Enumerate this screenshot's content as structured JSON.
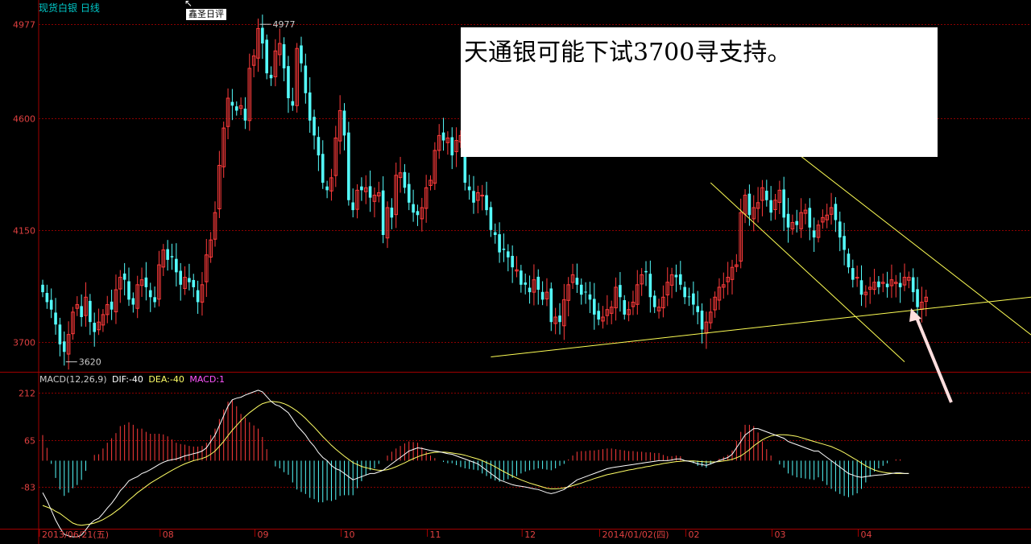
{
  "header": {
    "title": "现货白银  日线"
  },
  "annotation": {
    "text": "天通银可能下试3700寻支持。",
    "marker_label": "鑫圣日评",
    "marker_icon": "cursor-icon"
  },
  "colors": {
    "up": "#ff3b3b",
    "down": "#54fcfc",
    "grid": "#8c0000",
    "axis": "#a00000",
    "dif": "#ffffff",
    "dea": "#ffff66",
    "macd": "#ff55ff",
    "trend": "#ffff55",
    "arrow": "#ffdede"
  },
  "macd_legend": {
    "name": "MACD(12,26,9)",
    "dif": "DIF:-40",
    "dea": "DEA:-40",
    "macd": "MACD:1"
  },
  "chart_data": [
    {
      "type": "candlestick",
      "title": "现货白银 日线",
      "y_ticks": [
        3700,
        4150,
        4600,
        4977
      ],
      "ylim": [
        3580,
        5010
      ],
      "x_ticks": [
        "2013/06/21(五)",
        "08",
        "09",
        "10",
        "11",
        "12",
        "2014/01/02(四)",
        "02",
        "03",
        "04"
      ],
      "annotations": [
        {
          "label": "4977",
          "kind": "high"
        },
        {
          "label": "3620",
          "kind": "low"
        }
      ],
      "trendlines": [
        {
          "name": "support",
          "from": [
            "2013/12/06",
            3640
          ],
          "to": [
            "2014/04/30",
            3880
          ]
        },
        {
          "name": "channel-upper",
          "from": [
            "2014/01/30",
            4930
          ],
          "to": [
            "2014/04/30",
            3720
          ]
        },
        {
          "name": "channel-lower",
          "from": [
            "2014/01/27",
            4340
          ],
          "to": [
            "2014/04/25",
            3620
          ]
        }
      ],
      "close": [
        3900,
        3860,
        3830,
        3770,
        3690,
        3660,
        3730,
        3820,
        3850,
        3800,
        3880,
        3780,
        3740,
        3780,
        3810,
        3850,
        3830,
        3910,
        3960,
        3950,
        3870,
        3850,
        3930,
        3950,
        3920,
        3880,
        3860,
        4010,
        4070,
        4030,
        4040,
        3980,
        3930,
        3960,
        3940,
        3920,
        3860,
        3930,
        4050,
        4110,
        4220,
        4410,
        4560,
        4680,
        4650,
        4630,
        4650,
        4590,
        4800,
        4850,
        4960,
        4900,
        4780,
        4760,
        4870,
        4900,
        4800,
        4680,
        4650,
        4880,
        4820,
        4700,
        4590,
        4530,
        4450,
        4340,
        4310,
        4360,
        4520,
        4630,
        4530,
        4270,
        4230,
        4310,
        4310,
        4320,
        4280,
        4290,
        4300,
        4130,
        4240,
        4200,
        4370,
        4380,
        4320,
        4260,
        4220,
        4210,
        4240,
        4320,
        4350,
        4470,
        4530,
        4510,
        4520,
        4450,
        4510,
        4530,
        4340,
        4310,
        4260,
        4300,
        4290,
        4230,
        4150,
        4130,
        4060,
        4070,
        4040,
        4000,
        3990,
        3930,
        3930,
        3900,
        3950,
        3910,
        3870,
        3900,
        3780,
        3800,
        3780,
        3870,
        3930,
        3970,
        3930,
        3890,
        3900,
        3870,
        3810,
        3790,
        3800,
        3830,
        3840,
        3920,
        3880,
        3810,
        3830,
        3860,
        3930,
        3970,
        3980,
        3880,
        3840,
        3840,
        3880,
        3940,
        3970,
        3960,
        3930,
        3880,
        3880,
        3850,
        3820,
        3750,
        3780,
        3820,
        3880,
        3920,
        3930,
        3960,
        4000,
        4010,
        4220,
        4290,
        4210,
        4240,
        4260,
        4320,
        4270,
        4220,
        4270,
        4310,
        4200,
        4160,
        4180,
        4170,
        4220,
        4230,
        4160,
        4120,
        4170,
        4200,
        4210,
        4240,
        4190,
        4120,
        4070,
        4000,
        3950,
        3960,
        3890,
        3900,
        3920,
        3940,
        3920,
        3940,
        3920,
        3950,
        3940,
        3920,
        3960,
        3960,
        3900,
        3840,
        3860,
        3880
      ],
      "series": [
        {
          "name": "MA",
          "values": []
        }
      ]
    },
    {
      "type": "macd",
      "title": "MACD(12,26,9)",
      "y_ticks": [
        212,
        65,
        -83
      ],
      "ylim": [
        -210,
        270
      ],
      "series": [
        {
          "name": "DIF",
          "values": [
            -100,
            -125,
            -155,
            -185,
            -210,
            -230,
            -235,
            -238,
            -238,
            -232,
            -216,
            -198,
            -186,
            -180,
            -165,
            -148,
            -133,
            -115,
            -94,
            -80,
            -63,
            -56,
            -50,
            -40,
            -35,
            -28,
            -20,
            -12,
            -5,
            0,
            3,
            5,
            10,
            15,
            18,
            22,
            25,
            30,
            40,
            60,
            80,
            110,
            140,
            170,
            190,
            195,
            198,
            205,
            210,
            215,
            220,
            215,
            200,
            185,
            175,
            170,
            160,
            150,
            130,
            110,
            95,
            80,
            60,
            45,
            25,
            10,
            0,
            -15,
            -25,
            -30,
            -40,
            -50,
            -60,
            -55,
            -50,
            -45,
            -40,
            -40,
            -35,
            -30,
            -20,
            -10,
            0,
            10,
            20,
            30,
            35,
            40,
            38,
            35,
            32,
            30,
            28,
            25,
            22,
            20,
            15,
            10,
            5,
            0,
            -5,
            -10,
            -20,
            -30,
            -40,
            -50,
            -60,
            -65,
            -70,
            -75,
            -78,
            -80,
            -82,
            -85,
            -88,
            -90,
            -95,
            -100,
            -103,
            -100,
            -95,
            -90,
            -80,
            -70,
            -60,
            -55,
            -50,
            -45,
            -40,
            -35,
            -30,
            -25,
            -22,
            -20,
            -18,
            -16,
            -14,
            -12,
            -10,
            -8,
            -6,
            -4,
            -2,
            0,
            0,
            0,
            2,
            5,
            5,
            0,
            -2,
            -5,
            -10,
            -12,
            -15,
            -10,
            -5,
            0,
            5,
            10,
            20,
            40,
            60,
            80,
            90,
            100,
            100,
            95,
            90,
            85,
            80,
            75,
            70,
            60,
            55,
            50,
            45,
            40,
            35,
            30,
            30,
            20,
            10,
            0,
            -10,
            -20,
            -30,
            -40,
            -45,
            -50,
            -52,
            -50,
            -48,
            -46,
            -45,
            -44,
            -42,
            -40,
            -38,
            -38,
            -40,
            -40
          ]
        },
        {
          "name": "DEA",
          "values": [
            -140,
            -145,
            -150,
            -158,
            -165,
            -175,
            -185,
            -195,
            -200,
            -202,
            -200,
            -198,
            -195,
            -190,
            -184,
            -176,
            -168,
            -158,
            -148,
            -136,
            -123,
            -112,
            -100,
            -90,
            -80,
            -70,
            -62,
            -54,
            -46,
            -38,
            -30,
            -23,
            -16,
            -10,
            -5,
            0,
            3,
            7,
            12,
            20,
            30,
            45,
            60,
            78,
            95,
            110,
            125,
            138,
            150,
            160,
            170,
            178,
            182,
            185,
            184,
            182,
            178,
            172,
            164,
            155,
            144,
            132,
            118,
            105,
            90,
            75,
            62,
            48,
            36,
            25,
            14,
            4,
            -6,
            -12,
            -18,
            -22,
            -25,
            -28,
            -30,
            -30,
            -28,
            -24,
            -19,
            -13,
            -7,
            0,
            6,
            12,
            17,
            21,
            24,
            26,
            27,
            27,
            26,
            24,
            22,
            20,
            17,
            13,
            9,
            5,
            0,
            -6,
            -12,
            -19,
            -27,
            -34,
            -41,
            -48,
            -54,
            -60,
            -65,
            -70,
            -74,
            -78,
            -82,
            -86,
            -88,
            -88,
            -87,
            -85,
            -82,
            -78,
            -74,
            -70,
            -65,
            -61,
            -56,
            -52,
            -48,
            -44,
            -41,
            -38,
            -35,
            -32,
            -29,
            -27,
            -24,
            -22,
            -19,
            -17,
            -14,
            -12,
            -9,
            -7,
            -5,
            -3,
            -2,
            -1,
            -1,
            -1,
            -2,
            -3,
            -4,
            -4,
            -4,
            -3,
            -1,
            1,
            4,
            9,
            15,
            24,
            34,
            46,
            56,
            65,
            72,
            77,
            80,
            81,
            81,
            80,
            78,
            76,
            72,
            68,
            64,
            60,
            56,
            52,
            48,
            44,
            38,
            32,
            25,
            17,
            9,
            1,
            -8,
            -16,
            -23,
            -29,
            -33,
            -36,
            -38,
            -39,
            -40,
            -40,
            -40,
            -40,
            -40,
            -40,
            -40,
            -40,
            -40
          ]
        }
      ]
    }
  ]
}
